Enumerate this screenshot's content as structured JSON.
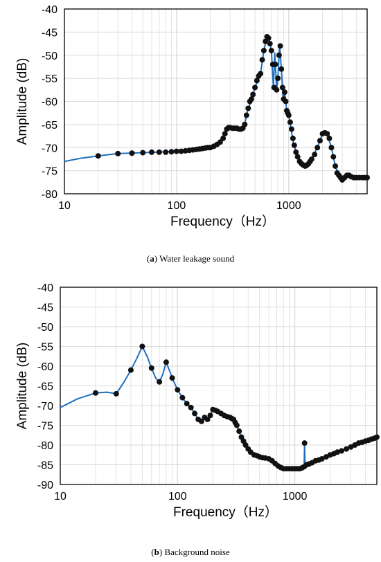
{
  "chart_data": [
    {
      "id": "a",
      "type": "line",
      "xscale": "log",
      "xlabel": "Frequency（Hz）",
      "ylabel": "Amplitude (dB)",
      "xlim": [
        10,
        5000
      ],
      "ylim": [
        -80,
        -40
      ],
      "xticks": [
        "10",
        "100",
        "1000"
      ],
      "yticks": [
        "-40",
        "-45",
        "-50",
        "-55",
        "-60",
        "-65",
        "-70",
        "-75",
        "-80"
      ],
      "grid": true,
      "caption_label": "a",
      "caption_text": "Water leakage sound",
      "line_color": "#1f6fbf",
      "marker_color": "#111111",
      "line": [
        [
          10,
          -73
        ],
        [
          14,
          -72.3
        ],
        [
          20,
          -71.8
        ],
        [
          30,
          -71.3
        ],
        [
          50,
          -71.1
        ],
        [
          100,
          -70.8
        ],
        [
          150,
          -70.4
        ],
        [
          200,
          -70
        ],
        [
          230,
          -69.3
        ],
        [
          260,
          -68
        ],
        [
          280,
          -66
        ],
        [
          300,
          -65.7
        ],
        [
          340,
          -65.8
        ],
        [
          370,
          -66
        ],
        [
          400,
          -65.5
        ],
        [
          430,
          -62
        ],
        [
          460,
          -60
        ],
        [
          500,
          -57
        ],
        [
          560,
          -54
        ],
        [
          600,
          -49
        ],
        [
          640,
          -46
        ],
        [
          670,
          -46.5
        ],
        [
          700,
          -49
        ],
        [
          730,
          -57
        ],
        [
          750,
          -49.5
        ],
        [
          780,
          -57.5
        ],
        [
          800,
          -55
        ],
        [
          830,
          -48
        ],
        [
          860,
          -53
        ],
        [
          890,
          -59.5
        ],
        [
          920,
          -58
        ],
        [
          960,
          -62
        ],
        [
          1000,
          -63
        ],
        [
          1050,
          -66
        ],
        [
          1100,
          -69
        ],
        [
          1200,
          -72
        ],
        [
          1300,
          -73.5
        ],
        [
          1400,
          -74
        ],
        [
          1500,
          -73.5
        ],
        [
          1600,
          -72.5
        ],
        [
          1800,
          -70
        ],
        [
          2000,
          -67
        ],
        [
          2200,
          -67
        ],
        [
          2400,
          -70
        ],
        [
          2600,
          -74
        ],
        [
          2800,
          -76
        ],
        [
          3000,
          -77
        ],
        [
          3300,
          -76
        ],
        [
          3600,
          -76.3
        ],
        [
          4000,
          -76.5
        ],
        [
          4500,
          -76.5
        ],
        [
          5000,
          -76.5
        ]
      ],
      "points": [
        [
          20,
          -71.8
        ],
        [
          30,
          -71.3
        ],
        [
          40,
          -71.2
        ],
        [
          50,
          -71.1
        ],
        [
          60,
          -71
        ],
        [
          70,
          -71
        ],
        [
          80,
          -71
        ],
        [
          90,
          -70.9
        ],
        [
          100,
          -70.8
        ],
        [
          110,
          -70.8
        ],
        [
          120,
          -70.7
        ],
        [
          130,
          -70.6
        ],
        [
          140,
          -70.5
        ],
        [
          150,
          -70.4
        ],
        [
          160,
          -70.3
        ],
        [
          170,
          -70.2
        ],
        [
          180,
          -70.1
        ],
        [
          190,
          -70
        ],
        [
          200,
          -70
        ],
        [
          215,
          -69.7
        ],
        [
          230,
          -69.3
        ],
        [
          245,
          -68.8
        ],
        [
          260,
          -68
        ],
        [
          270,
          -67
        ],
        [
          280,
          -66
        ],
        [
          290,
          -65.7
        ],
        [
          300,
          -65.7
        ],
        [
          315,
          -65.8
        ],
        [
          330,
          -65.8
        ],
        [
          345,
          -65.8
        ],
        [
          360,
          -66
        ],
        [
          375,
          -66
        ],
        [
          390,
          -65.8
        ],
        [
          405,
          -65
        ],
        [
          420,
          -63
        ],
        [
          435,
          -61.5
        ],
        [
          450,
          -60
        ],
        [
          465,
          -59.5
        ],
        [
          480,
          -58.5
        ],
        [
          500,
          -57
        ],
        [
          520,
          -55.5
        ],
        [
          540,
          -54.5
        ],
        [
          560,
          -54
        ],
        [
          580,
          -51
        ],
        [
          600,
          -49
        ],
        [
          620,
          -47
        ],
        [
          640,
          -46
        ],
        [
          660,
          -46.3
        ],
        [
          680,
          -47.5
        ],
        [
          700,
          -49
        ],
        [
          720,
          -52
        ],
        [
          740,
          -57
        ],
        [
          760,
          -52
        ],
        [
          780,
          -57.5
        ],
        [
          800,
          -55
        ],
        [
          820,
          -50
        ],
        [
          840,
          -48
        ],
        [
          860,
          -53
        ],
        [
          880,
          -57
        ],
        [
          900,
          -59.5
        ],
        [
          920,
          -58
        ],
        [
          940,
          -60
        ],
        [
          960,
          -62
        ],
        [
          980,
          -62.5
        ],
        [
          1000,
          -63
        ],
        [
          1030,
          -64.5
        ],
        [
          1060,
          -66
        ],
        [
          1090,
          -68
        ],
        [
          1120,
          -69.5
        ],
        [
          1160,
          -71
        ],
        [
          1200,
          -72
        ],
        [
          1250,
          -73
        ],
        [
          1300,
          -73.5
        ],
        [
          1350,
          -73.8
        ],
        [
          1400,
          -74
        ],
        [
          1450,
          -73.8
        ],
        [
          1500,
          -73.5
        ],
        [
          1550,
          -73
        ],
        [
          1600,
          -72.5
        ],
        [
          1700,
          -71.5
        ],
        [
          1800,
          -70
        ],
        [
          1900,
          -68.5
        ],
        [
          2000,
          -67
        ],
        [
          2100,
          -66.8
        ],
        [
          2200,
          -67
        ],
        [
          2300,
          -68
        ],
        [
          2400,
          -70
        ],
        [
          2500,
          -72
        ],
        [
          2600,
          -74
        ],
        [
          2700,
          -75.5
        ],
        [
          2800,
          -76
        ],
        [
          2900,
          -76.5
        ],
        [
          3000,
          -77
        ],
        [
          3150,
          -76.5
        ],
        [
          3300,
          -76
        ],
        [
          3450,
          -76
        ],
        [
          3600,
          -76.3
        ],
        [
          3800,
          -76.5
        ],
        [
          4000,
          -76.5
        ],
        [
          4250,
          -76.5
        ],
        [
          4500,
          -76.5
        ],
        [
          4750,
          -76.5
        ],
        [
          5000,
          -76.5
        ]
      ]
    },
    {
      "id": "b",
      "type": "line",
      "xscale": "log",
      "xlabel": "Frequency（Hz）",
      "ylabel": "Amplitude (dB)",
      "xlim": [
        10,
        5000
      ],
      "ylim": [
        -90,
        -40
      ],
      "xticks": [
        "10",
        "100",
        "1000"
      ],
      "yticks": [
        "-40",
        "-45",
        "-50",
        "-55",
        "-60",
        "-65",
        "-70",
        "-75",
        "-80",
        "-85",
        "-90"
      ],
      "grid": true,
      "caption_label": "b",
      "caption_text": "Background noise",
      "line_color": "#1f6fbf",
      "marker_color": "#111111",
      "line": [
        [
          10,
          -70.5
        ],
        [
          14,
          -68.3
        ],
        [
          20,
          -66.8
        ],
        [
          25,
          -66.6
        ],
        [
          30,
          -67
        ],
        [
          35,
          -64
        ],
        [
          40,
          -61
        ],
        [
          45,
          -58
        ],
        [
          50,
          -55
        ],
        [
          55,
          -57.5
        ],
        [
          60,
          -60.5
        ],
        [
          65,
          -63
        ],
        [
          70,
          -64
        ],
        [
          75,
          -62
        ],
        [
          80,
          -59
        ],
        [
          85,
          -61
        ],
        [
          90,
          -63
        ],
        [
          100,
          -66
        ],
        [
          110,
          -68
        ],
        [
          120,
          -69.5
        ],
        [
          130,
          -70.5
        ],
        [
          140,
          -72
        ],
        [
          150,
          -73.5
        ],
        [
          160,
          -74
        ],
        [
          170,
          -73
        ],
        [
          180,
          -73.5
        ],
        [
          190,
          -72.5
        ],
        [
          200,
          -71
        ],
        [
          220,
          -71.5
        ],
        [
          250,
          -72.5
        ],
        [
          280,
          -73
        ],
        [
          300,
          -73.5
        ],
        [
          320,
          -75
        ],
        [
          350,
          -78
        ],
        [
          400,
          -81
        ],
        [
          450,
          -82.5
        ],
        [
          500,
          -83
        ],
        [
          600,
          -83.5
        ],
        [
          700,
          -85
        ],
        [
          800,
          -86
        ],
        [
          900,
          -86
        ],
        [
          1000,
          -86
        ],
        [
          1100,
          -86
        ],
        [
          1200,
          -85.5
        ],
        [
          1210,
          -79.5
        ],
        [
          1220,
          -85
        ],
        [
          1300,
          -85
        ],
        [
          1500,
          -84
        ],
        [
          1700,
          -83.5
        ],
        [
          2000,
          -82.5
        ],
        [
          2500,
          -81.5
        ],
        [
          3000,
          -80.5
        ],
        [
          3500,
          -79.5
        ],
        [
          4000,
          -79
        ],
        [
          4500,
          -78.5
        ],
        [
          5000,
          -78
        ]
      ],
      "points": [
        [
          20,
          -66.8
        ],
        [
          30,
          -67
        ],
        [
          40,
          -61
        ],
        [
          50,
          -55
        ],
        [
          60,
          -60.5
        ],
        [
          70,
          -64
        ],
        [
          80,
          -59
        ],
        [
          90,
          -63
        ],
        [
          100,
          -66
        ],
        [
          110,
          -68
        ],
        [
          120,
          -69.5
        ],
        [
          130,
          -70.5
        ],
        [
          140,
          -72
        ],
        [
          150,
          -73.5
        ],
        [
          160,
          -74
        ],
        [
          170,
          -73
        ],
        [
          180,
          -73.5
        ],
        [
          190,
          -72.5
        ],
        [
          200,
          -71
        ],
        [
          210,
          -71.2
        ],
        [
          220,
          -71.5
        ],
        [
          235,
          -72
        ],
        [
          250,
          -72.5
        ],
        [
          265,
          -72.8
        ],
        [
          280,
          -73
        ],
        [
          290,
          -73.3
        ],
        [
          300,
          -73.5
        ],
        [
          310,
          -74.3
        ],
        [
          320,
          -75
        ],
        [
          335,
          -76.5
        ],
        [
          350,
          -78
        ],
        [
          365,
          -79
        ],
        [
          380,
          -80
        ],
        [
          400,
          -81
        ],
        [
          420,
          -81.8
        ],
        [
          450,
          -82.5
        ],
        [
          475,
          -82.7
        ],
        [
          500,
          -83
        ],
        [
          530,
          -83.2
        ],
        [
          560,
          -83.3
        ],
        [
          600,
          -83.5
        ],
        [
          640,
          -84
        ],
        [
          680,
          -84.7
        ],
        [
          720,
          -85.3
        ],
        [
          760,
          -85.7
        ],
        [
          800,
          -86
        ],
        [
          850,
          -86
        ],
        [
          900,
          -86
        ],
        [
          950,
          -86
        ],
        [
          1000,
          -86
        ],
        [
          1050,
          -86
        ],
        [
          1100,
          -86
        ],
        [
          1150,
          -85.8
        ],
        [
          1200,
          -85.5
        ],
        [
          1210,
          -79.5
        ],
        [
          1260,
          -85
        ],
        [
          1320,
          -84.8
        ],
        [
          1400,
          -84.5
        ],
        [
          1500,
          -84
        ],
        [
          1600,
          -83.8
        ],
        [
          1700,
          -83.5
        ],
        [
          1850,
          -83
        ],
        [
          2000,
          -82.5
        ],
        [
          2150,
          -82.2
        ],
        [
          2300,
          -81.8
        ],
        [
          2500,
          -81.5
        ],
        [
          2750,
          -81
        ],
        [
          3000,
          -80.5
        ],
        [
          3250,
          -80
        ],
        [
          3500,
          -79.5
        ],
        [
          3750,
          -79.3
        ],
        [
          4000,
          -79
        ],
        [
          4250,
          -78.8
        ],
        [
          4500,
          -78.5
        ],
        [
          4750,
          -78.3
        ],
        [
          5000,
          -78
        ]
      ]
    }
  ]
}
